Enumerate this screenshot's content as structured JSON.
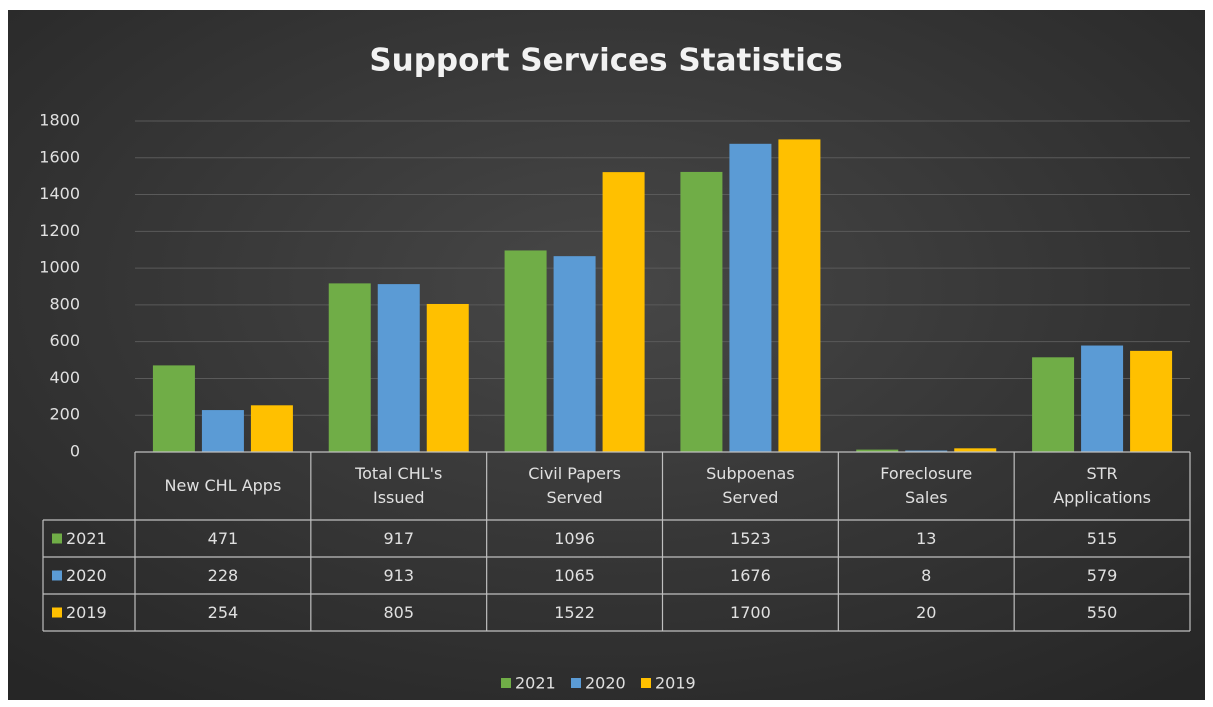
{
  "chart_data": {
    "type": "bar",
    "title": "Support Services Statistics",
    "categories": [
      "New CHL Apps",
      "Total CHL's Issued",
      "Civil Papers Served",
      "Subpoenas Served",
      "Foreclosure Sales",
      "STR Applications"
    ],
    "series": [
      {
        "name": "2021",
        "color": "#70ad47",
        "values": [
          471,
          917,
          1096,
          1523,
          13,
          515
        ]
      },
      {
        "name": "2020",
        "color": "#5b9bd5",
        "values": [
          228,
          913,
          1065,
          1676,
          8,
          579
        ]
      },
      {
        "name": "2019",
        "color": "#ffc000",
        "values": [
          254,
          805,
          1522,
          1700,
          20,
          550
        ]
      }
    ],
    "ylim": [
      0,
      1800
    ],
    "yticks": [
      0,
      200,
      400,
      600,
      800,
      1000,
      1200,
      1400,
      1600,
      1800
    ],
    "grid": true,
    "legend": "bottom"
  }
}
